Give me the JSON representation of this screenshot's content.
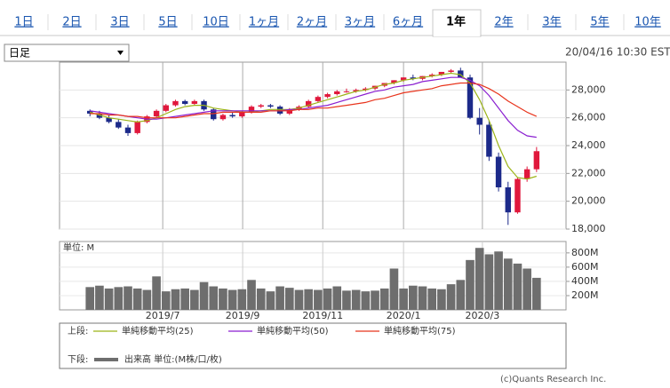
{
  "tabs": [
    "1日",
    "2日",
    "3日",
    "5日",
    "10日",
    "1ヶ月",
    "2ヶ月",
    "3ヶ月",
    "6ヶ月",
    "1年",
    "2年",
    "3年",
    "5年",
    "10年"
  ],
  "active_tab": 9,
  "dropdown": "日足",
  "timestamp": "20/04/16 10:30 EST",
  "footer": "(c)Quants Research Inc.",
  "chart_data": [
    {
      "type": "candlestick",
      "legend_title": "上段:",
      "up_color": "#e0183c",
      "down_color": "#1c2a8a",
      "ohlc": {
        "open": [
          26500,
          26300,
          26000,
          25700,
          25300,
          24900,
          25700,
          26100,
          26500,
          26900,
          27200,
          27000,
          27200,
          26600,
          25900,
          26200,
          26100,
          26400,
          26800,
          26900,
          26800,
          26300,
          26600,
          26800,
          27200,
          27500,
          27700,
          27900,
          27900,
          28000,
          28100,
          28300,
          28500,
          28700,
          28900,
          28800,
          29000,
          29100,
          29300,
          29400,
          28900,
          26000,
          25500,
          23200,
          21000,
          19200,
          21600,
          22300
        ],
        "high": [
          26600,
          26500,
          26200,
          25900,
          25500,
          25800,
          26200,
          26600,
          27000,
          27300,
          27300,
          27300,
          27300,
          26700,
          26300,
          26400,
          26500,
          26900,
          27000,
          27000,
          26900,
          26700,
          26900,
          27300,
          27600,
          27800,
          28000,
          28100,
          28100,
          28200,
          28300,
          28500,
          28700,
          28900,
          29100,
          29000,
          29200,
          29300,
          29500,
          29600,
          29100,
          26700,
          25800,
          23500,
          21400,
          21700,
          22500,
          23900
        ],
        "low": [
          26100,
          25900,
          25600,
          25200,
          24700,
          24800,
          25600,
          26000,
          26400,
          26800,
          26900,
          26900,
          26500,
          25800,
          25800,
          26000,
          26000,
          26300,
          26700,
          26700,
          26200,
          26200,
          26500,
          26700,
          27100,
          27400,
          27600,
          27800,
          27800,
          27900,
          28000,
          28200,
          28400,
          28600,
          28700,
          28700,
          28900,
          29000,
          29200,
          29300,
          25900,
          24800,
          22900,
          20700,
          18300,
          19100,
          21400,
          22100
        ],
        "close": [
          26300,
          26000,
          25700,
          25300,
          24900,
          25700,
          26100,
          26500,
          26900,
          27200,
          27000,
          27200,
          26600,
          25900,
          26200,
          26100,
          26400,
          26800,
          26900,
          26800,
          26300,
          26600,
          26800,
          27200,
          27500,
          27700,
          27900,
          27900,
          28000,
          28100,
          28300,
          28500,
          28700,
          28900,
          28800,
          29000,
          29100,
          29300,
          29400,
          28900,
          26000,
          25500,
          23200,
          21000,
          19200,
          21600,
          22300,
          23600
        ]
      },
      "series": [
        {
          "name": "単純移動平均(25)",
          "color": "#9cb418",
          "values": [
            26400,
            26200,
            26000,
            25900,
            25800,
            25700,
            25800,
            26000,
            26300,
            26600,
            26800,
            26900,
            26900,
            26700,
            26600,
            26500,
            26400,
            26400,
            26500,
            26600,
            26600,
            26600,
            26700,
            26900,
            27100,
            27300,
            27500,
            27700,
            27900,
            28000,
            28200,
            28400,
            28500,
            28700,
            28800,
            28900,
            29000,
            29100,
            29200,
            29100,
            28500,
            27300,
            25800,
            24000,
            22500,
            21700,
            21600,
            21800
          ]
        },
        {
          "name": "単純移動平均(50)",
          "color": "#8a1fd0",
          "values": [
            26500,
            26400,
            26300,
            26200,
            26100,
            26000,
            25900,
            25900,
            26000,
            26100,
            26200,
            26300,
            26400,
            26500,
            26500,
            26500,
            26500,
            26500,
            26500,
            26500,
            26500,
            26600,
            26600,
            26700,
            26800,
            26900,
            27100,
            27300,
            27500,
            27700,
            27900,
            28000,
            28200,
            28300,
            28400,
            28600,
            28700,
            28800,
            28900,
            28900,
            28700,
            28300,
            27600,
            26700,
            25800,
            25100,
            24700,
            24600
          ]
        },
        {
          "name": "単純移動平均(75)",
          "color": "#e8341c",
          "values": [
            26300,
            26300,
            26200,
            26200,
            26100,
            26100,
            26000,
            26000,
            26000,
            26000,
            26100,
            26200,
            26300,
            26300,
            26400,
            26400,
            26400,
            26400,
            26400,
            26500,
            26500,
            26500,
            26600,
            26600,
            26700,
            26700,
            26800,
            26900,
            27000,
            27100,
            27300,
            27400,
            27600,
            27800,
            27900,
            28000,
            28100,
            28300,
            28400,
            28500,
            28500,
            28400,
            28100,
            27700,
            27200,
            26800,
            26400,
            26100
          ]
        }
      ],
      "ylim": [
        18000,
        30000
      ],
      "yticks": [
        {
          "value": 18000,
          "label": "18,000"
        },
        {
          "value": 20000,
          "label": "20,000"
        },
        {
          "value": 22000,
          "label": "22,000"
        },
        {
          "value": 24000,
          "label": "24,000"
        },
        {
          "value": 26000,
          "label": "26,000"
        },
        {
          "value": 28000,
          "label": "28,000"
        }
      ],
      "grid": true
    },
    {
      "type": "bar",
      "legend_title": "下段:",
      "unit_label": "単位: M",
      "series": [
        {
          "name": "出来高 単位:(M株/口/枚)",
          "color": "#6e6e6e",
          "values": [
            320,
            340,
            300,
            320,
            330,
            300,
            280,
            470,
            260,
            290,
            300,
            280,
            390,
            330,
            300,
            280,
            290,
            420,
            300,
            260,
            330,
            310,
            280,
            290,
            280,
            300,
            330,
            270,
            280,
            260,
            270,
            300,
            580,
            300,
            340,
            330,
            300,
            290,
            360,
            420,
            700,
            870,
            780,
            820,
            720,
            650,
            580,
            450
          ]
        }
      ],
      "ylim": [
        0,
        960
      ],
      "yticks": [
        {
          "value": 200,
          "label": "200M"
        },
        {
          "value": 400,
          "label": "400M"
        },
        {
          "value": 600,
          "label": "600M"
        },
        {
          "value": 800,
          "label": "800M"
        }
      ],
      "xlim": [
        -3.2,
        50.1
      ],
      "xticks": [
        {
          "value": 7.66,
          "label": "2019/7"
        },
        {
          "value": 16.07,
          "label": "2019/9"
        },
        {
          "value": 24.5,
          "label": "2019/11"
        },
        {
          "value": 33.0,
          "label": "2020/1"
        },
        {
          "value": 41.3,
          "label": "2020/3"
        }
      ],
      "grid": true
    }
  ]
}
